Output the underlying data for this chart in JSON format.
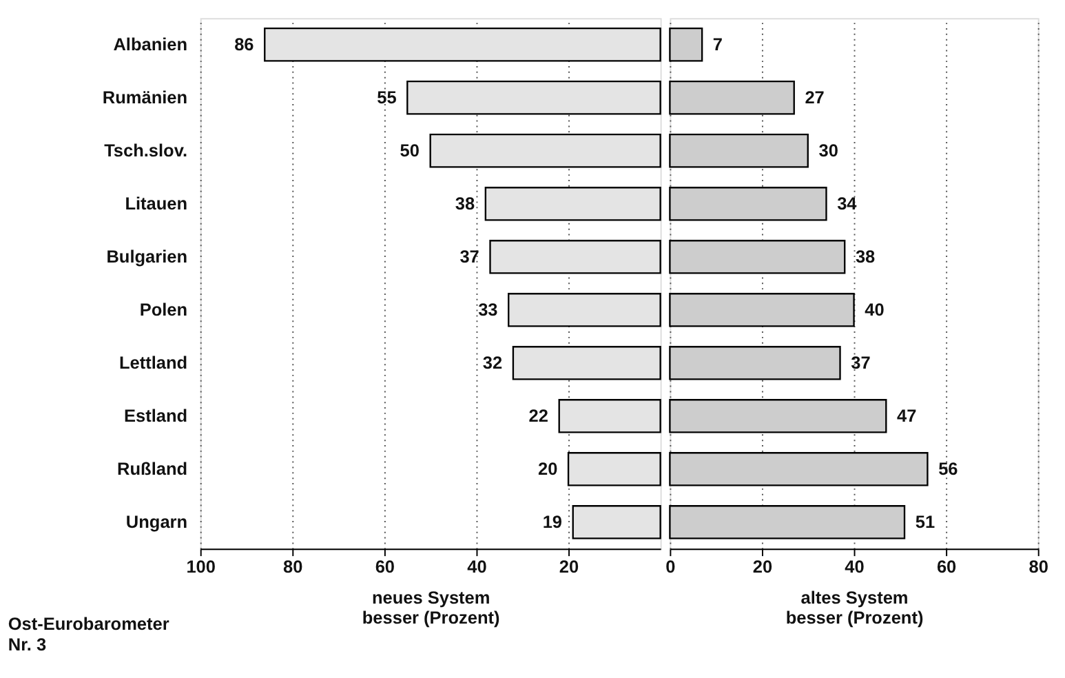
{
  "chart_data": [
    {
      "type": "bar",
      "orientation": "horizontal",
      "categories": [
        "Albanien",
        "Rumänien",
        "Tsch.slov.",
        "Litauen",
        "Bulgarien",
        "Polen",
        "Lettland",
        "Estland",
        "Rußland",
        "Ungarn"
      ],
      "series": [
        {
          "color": "#e4e4e4",
          "values": [
            86,
            55,
            50,
            38,
            37,
            33,
            32,
            22,
            20,
            19
          ]
        }
      ],
      "data_labels": true,
      "xlabel": "neues System\nbesser (Prozent)",
      "xlim": [
        100,
        0
      ],
      "xticks": [
        100,
        80,
        60,
        40,
        20
      ],
      "grid": "x",
      "annotations": [
        "Ost-Eurobarometer\nNr. 3"
      ]
    },
    {
      "type": "bar",
      "orientation": "horizontal",
      "categories": [
        null,
        null,
        null,
        null,
        null,
        null,
        null,
        null,
        null,
        null
      ],
      "series": [
        {
          "color": "#cdcdcd",
          "values": [
            7,
            27,
            30,
            34,
            38,
            40,
            37,
            47,
            56,
            51
          ]
        }
      ],
      "data_labels": true,
      "xlabel": "altes System\nbesser (Prozent)",
      "xlim": [
        0,
        80
      ],
      "xticks": [
        0,
        20,
        40,
        60,
        80
      ],
      "grid": "x",
      "tick_labels": "x"
    }
  ]
}
